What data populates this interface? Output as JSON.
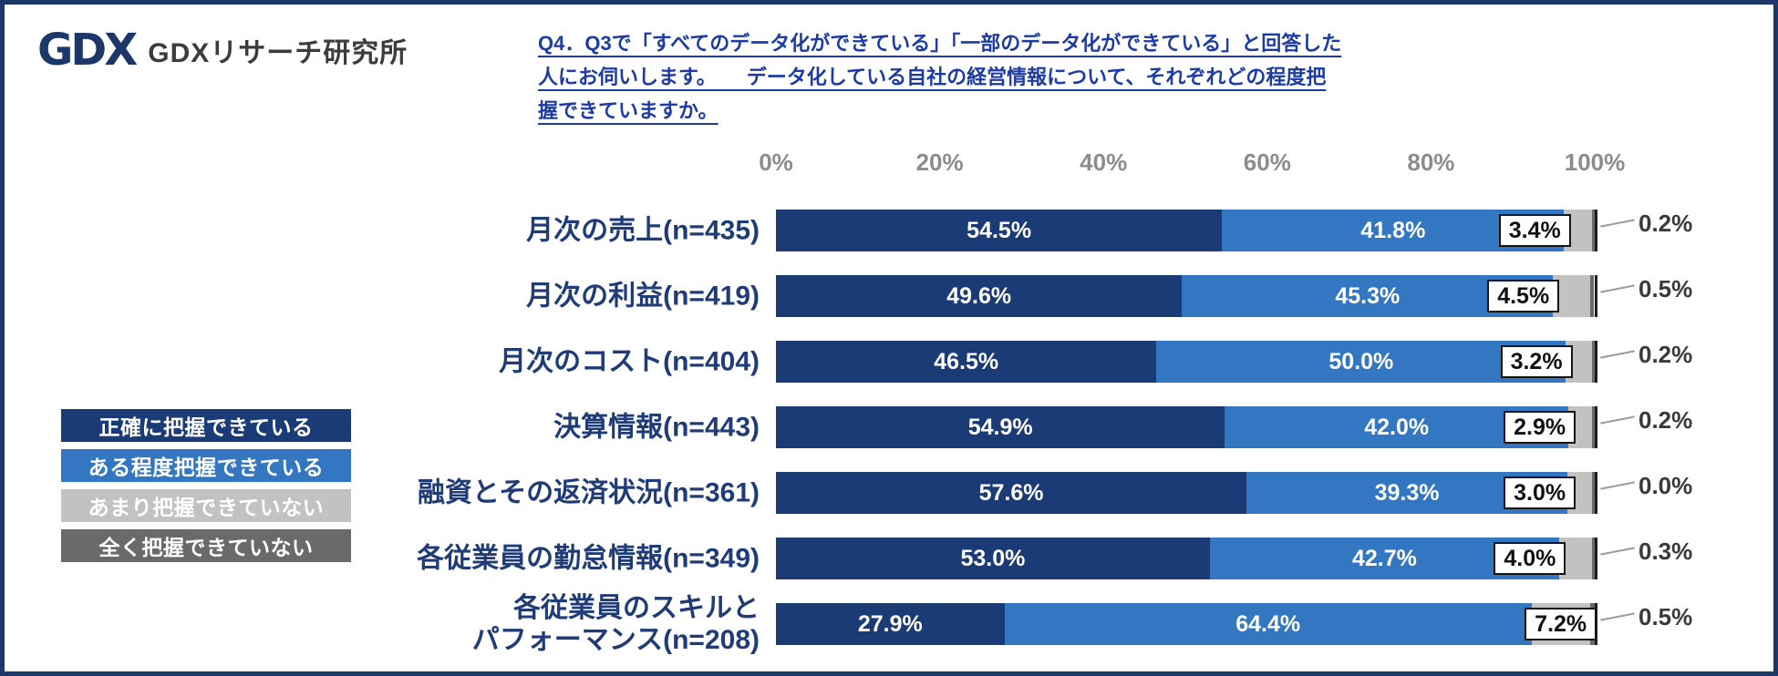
{
  "logo": {
    "mark": "GDX",
    "name": "GDXリサーチ研究所"
  },
  "title": "Q4．Q3で「すべてのデータ化ができている」「一部のデータ化ができている」と回答した\n人にお伺いします。　　データ化している自社の経営情報について、それぞれどの程度把\n握できていますか。",
  "legend": {
    "items": [
      {
        "label": "正確に把握できている",
        "color": "#1B3B76"
      },
      {
        "label": "ある程度把握できている",
        "color": "#3377C3"
      },
      {
        "label": "あまり把握できていない",
        "color": "#C2C2C2"
      },
      {
        "label": "全く把握できていない",
        "color": "#6A6A6A"
      }
    ]
  },
  "chart_data": {
    "type": "bar",
    "orientation": "horizontal",
    "stacked": true,
    "value_format": "percent",
    "grid": false,
    "legend_position": "left",
    "xlim": [
      0,
      100
    ],
    "x_ticks": [
      "0%",
      "20%",
      "40%",
      "60%",
      "80%",
      "100%"
    ],
    "categories": [
      "月次の売上(n=435)",
      "月次の利益(n=419)",
      "月次のコスト(n=404)",
      "決算情報(n=443)",
      "融資とその返済状況(n=361)",
      "各従業員の勤怠情報(n=349)",
      "各従業員のスキルと\nパフォーマンス(n=208)"
    ],
    "series": [
      {
        "name": "正確に把握できている",
        "color": "#1B3B76",
        "values": [
          54.5,
          49.6,
          46.5,
          54.9,
          57.6,
          53.0,
          27.9
        ]
      },
      {
        "name": "ある程度把握できている",
        "color": "#3377C3",
        "values": [
          41.8,
          45.3,
          50.0,
          42.0,
          39.3,
          42.7,
          64.4
        ]
      },
      {
        "name": "あまり把握できていない",
        "color": "#C2C2C2",
        "values": [
          3.4,
          4.5,
          3.2,
          2.9,
          3.0,
          4.0,
          7.2
        ]
      },
      {
        "name": "全く把握できていない",
        "color": "#6A6A6A",
        "values": [
          0.2,
          0.5,
          0.2,
          0.2,
          0.0,
          0.3,
          0.5
        ]
      }
    ]
  }
}
